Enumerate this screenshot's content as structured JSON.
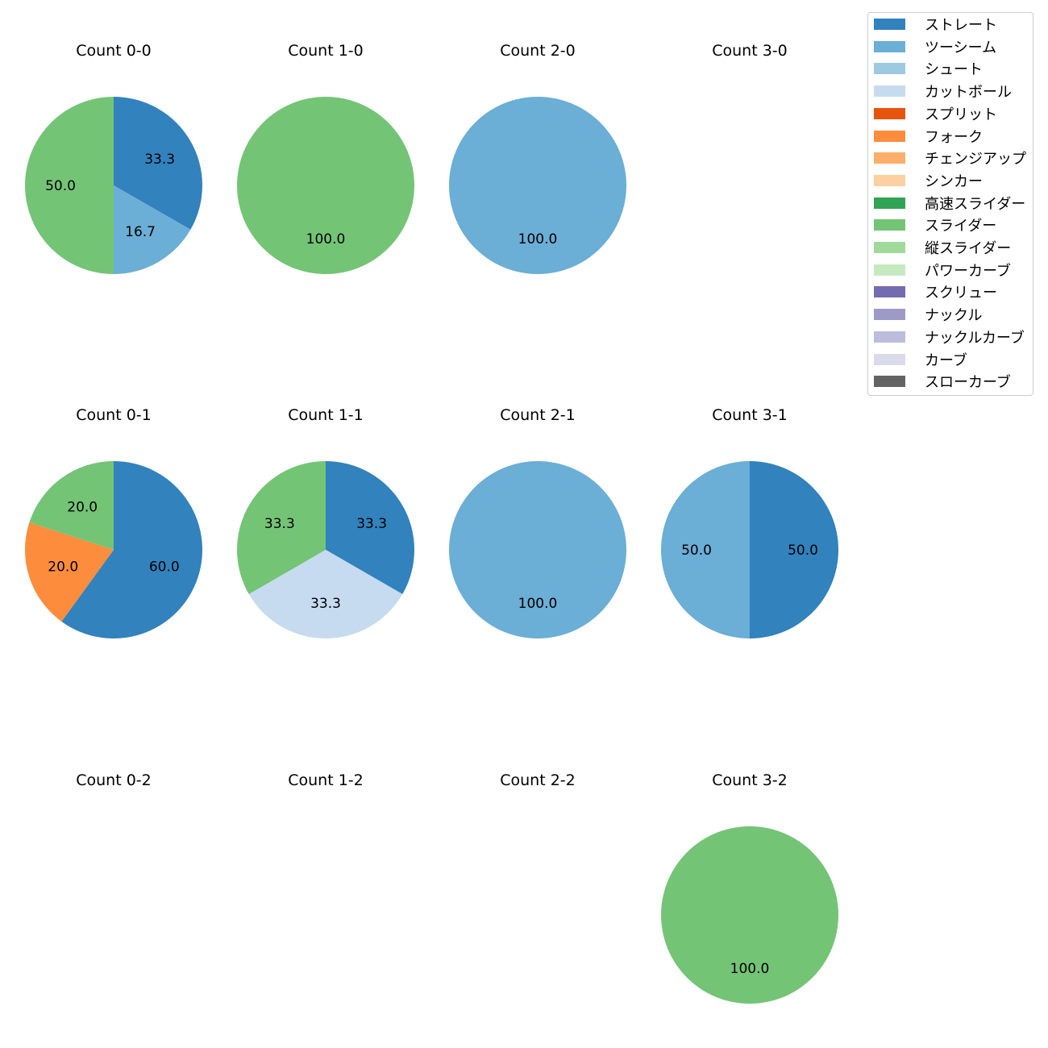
{
  "chart_data": {
    "type": "pie",
    "legend": {
      "placement": "top-right",
      "entries": [
        {
          "label": "ストレート",
          "color": "#3182bd"
        },
        {
          "label": "ツーシーム",
          "color": "#6baed6"
        },
        {
          "label": "シュート",
          "color": "#9ecae1"
        },
        {
          "label": "カットボール",
          "color": "#c6dbef"
        },
        {
          "label": "スプリット",
          "color": "#e6550d"
        },
        {
          "label": "フォーク",
          "color": "#fd8d3c"
        },
        {
          "label": "チェンジアップ",
          "color": "#fdae6b"
        },
        {
          "label": "シンカー",
          "color": "#fdd0a2"
        },
        {
          "label": "高速スライダー",
          "color": "#31a354"
        },
        {
          "label": "スライダー",
          "color": "#74c476"
        },
        {
          "label": "縦スライダー",
          "color": "#a1d99b"
        },
        {
          "label": "パワーカーブ",
          "color": "#c7e9c0"
        },
        {
          "label": "スクリュー",
          "color": "#756bb1"
        },
        {
          "label": "ナックル",
          "color": "#9e9ac8"
        },
        {
          "label": "ナックルカーブ",
          "color": "#bcbddc"
        },
        {
          "label": "カーブ",
          "color": "#dadaeb"
        },
        {
          "label": "スローカーブ",
          "color": "#636363"
        }
      ]
    },
    "panels": [
      {
        "title": "Count 0-0",
        "slices": [
          {
            "pitch": "ストレート",
            "value": 33.3,
            "label": "33.3"
          },
          {
            "pitch": "ツーシーム",
            "value": 16.7,
            "label": "16.7"
          },
          {
            "pitch": "スライダー",
            "value": 50.0,
            "label": "50.0"
          }
        ]
      },
      {
        "title": "Count 1-0",
        "slices": [
          {
            "pitch": "スライダー",
            "value": 100.0,
            "label": "100.0"
          }
        ]
      },
      {
        "title": "Count 2-0",
        "slices": [
          {
            "pitch": "ツーシーム",
            "value": 100.0,
            "label": "100.0"
          }
        ]
      },
      {
        "title": "Count 3-0",
        "slices": []
      },
      {
        "title": "Count 0-1",
        "slices": [
          {
            "pitch": "ストレート",
            "value": 60.0,
            "label": "60.0"
          },
          {
            "pitch": "フォーク",
            "value": 20.0,
            "label": "20.0"
          },
          {
            "pitch": "スライダー",
            "value": 20.0,
            "label": "20.0"
          }
        ]
      },
      {
        "title": "Count 1-1",
        "slices": [
          {
            "pitch": "ストレート",
            "value": 33.3,
            "label": "33.3"
          },
          {
            "pitch": "カットボール",
            "value": 33.3,
            "label": "33.3"
          },
          {
            "pitch": "スライダー",
            "value": 33.3,
            "label": "33.3"
          }
        ]
      },
      {
        "title": "Count 2-1",
        "slices": [
          {
            "pitch": "ツーシーム",
            "value": 100.0,
            "label": "100.0"
          }
        ]
      },
      {
        "title": "Count 3-1",
        "slices": [
          {
            "pitch": "ストレート",
            "value": 50.0,
            "label": "50.0"
          },
          {
            "pitch": "ツーシーム",
            "value": 50.0,
            "label": "50.0"
          }
        ]
      },
      {
        "title": "Count 0-2",
        "slices": []
      },
      {
        "title": "Count 1-2",
        "slices": []
      },
      {
        "title": "Count 2-2",
        "slices": []
      },
      {
        "title": "Count 3-2",
        "slices": [
          {
            "pitch": "スライダー",
            "value": 100.0,
            "label": "100.0"
          }
        ]
      }
    ]
  }
}
